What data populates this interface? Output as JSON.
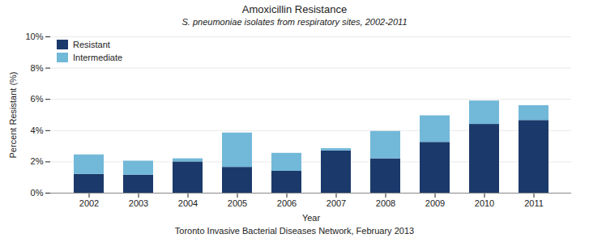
{
  "chart_data": {
    "type": "bar",
    "stacked": true,
    "title": "Amoxicillin Resistance",
    "subtitle": "S. pneumoniae isolates from respiratory sites, 2002-2011",
    "caption": "Toronto Invasive Bacterial Diseases Network, February 2013",
    "xlabel": "Year",
    "ylabel": "Percent Resistant (%)",
    "categories": [
      "2002",
      "2003",
      "2004",
      "2005",
      "2006",
      "2007",
      "2008",
      "2009",
      "2010",
      "2011"
    ],
    "series": [
      {
        "name": "Resistant",
        "color": "#1b3a6b",
        "values": [
          1.2,
          1.15,
          2.0,
          1.65,
          1.4,
          2.7,
          2.2,
          3.25,
          4.4,
          4.65
        ]
      },
      {
        "name": "Intermediate",
        "color": "#72b8d8",
        "values": [
          1.25,
          0.9,
          0.2,
          2.2,
          1.15,
          0.15,
          1.75,
          1.7,
          1.5,
          0.95
        ]
      }
    ],
    "ylim": [
      0,
      10
    ],
    "yticks": [
      {
        "value": 0,
        "label": "0%"
      },
      {
        "value": 2,
        "label": "2%"
      },
      {
        "value": 4,
        "label": "4%"
      },
      {
        "value": 6,
        "label": "6%"
      },
      {
        "value": 8,
        "label": "8%"
      },
      {
        "value": 10,
        "label": "10%"
      }
    ],
    "grid": true,
    "legend": "upper left"
  }
}
